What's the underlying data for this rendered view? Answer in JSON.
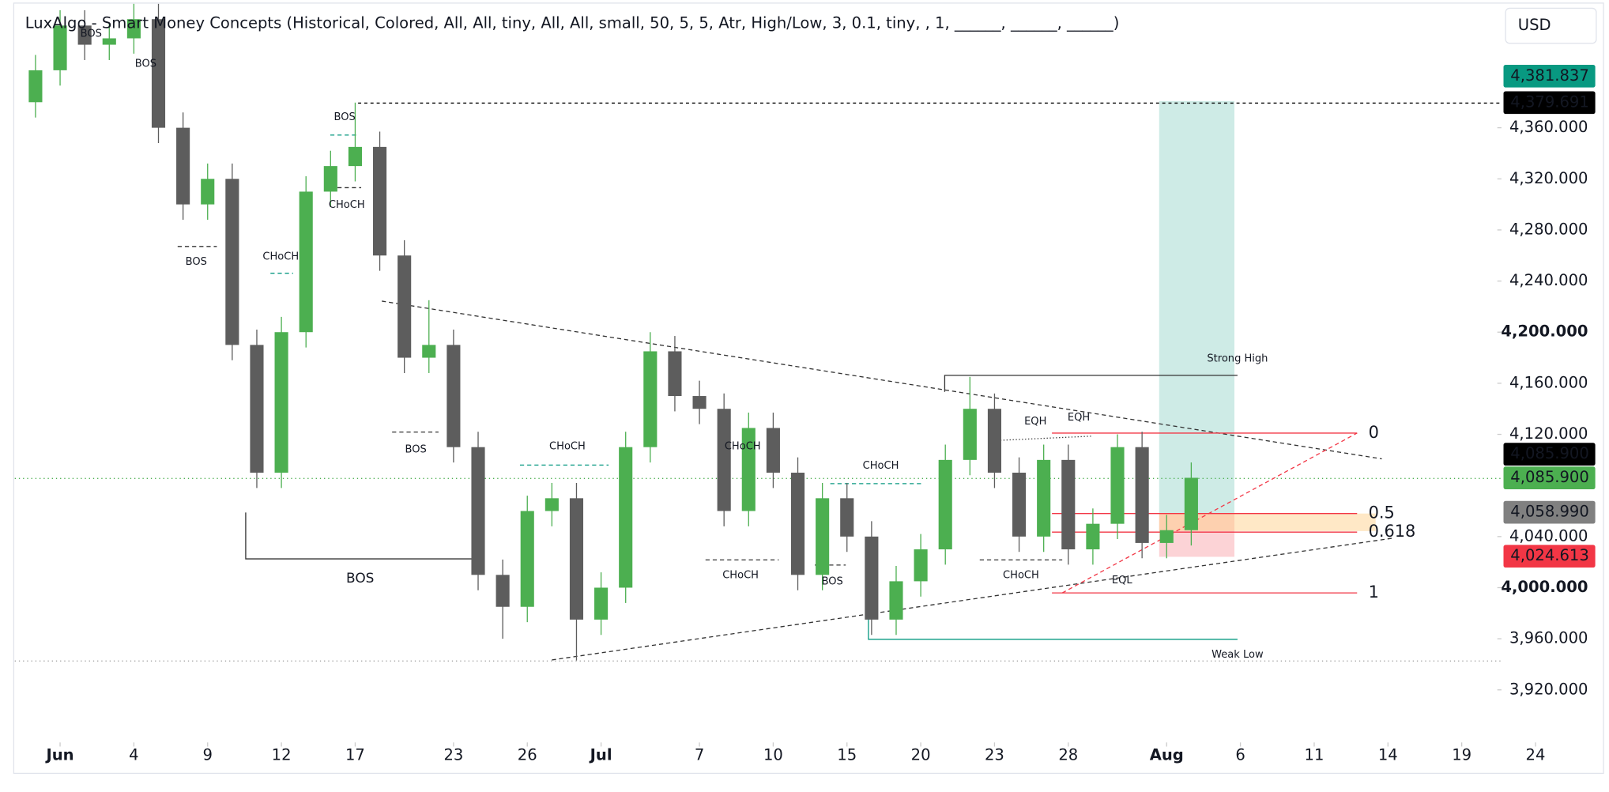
{
  "chart_data": {
    "type": "candlestick",
    "title": "LuxAlgo - Smart Money Concepts (Historical, Colored, All, All, tiny, All, All, small, 50, 5, 5, Atr, High/Low, 3, 0.1, tiny, , 1, ______, ______, ______)",
    "currency": "USD",
    "up_color": "#4caf50",
    "down_color": "#5d5d5d",
    "x": [
      -1,
      0,
      1,
      2,
      3,
      4,
      5,
      6,
      7,
      8,
      9,
      10,
      11,
      12,
      13,
      14,
      15,
      16,
      17,
      18,
      19,
      20,
      21,
      22,
      23,
      24,
      25,
      26,
      27,
      28,
      29,
      30,
      31,
      32,
      33,
      34,
      35,
      36,
      37,
      38,
      39,
      40,
      41,
      42,
      43,
      44,
      45,
      46
    ],
    "open": [
      4380,
      4405,
      4440,
      4425,
      4430,
      4445,
      4360,
      4300,
      4320,
      4190,
      4090,
      4200,
      4310,
      4330,
      4345,
      4260,
      4180,
      4190,
      4110,
      4010,
      3985,
      4060,
      4070,
      3975,
      4000,
      4110,
      4185,
      4150,
      4140,
      4060,
      4125,
      4090,
      4010,
      4070,
      4040,
      3975,
      4005,
      4030,
      4100,
      4140,
      4090,
      4040,
      4100,
      4030,
      4050,
      4110,
      4035,
      4045
    ],
    "high": [
      4417,
      4452,
      4452,
      4442,
      4457,
      4457,
      4372,
      4332,
      4332,
      4202,
      4212,
      4322,
      4342,
      4379.691,
      4357,
      4272,
      4225,
      4202,
      4122,
      4022,
      4072,
      4082,
      4082,
      4012,
      4122,
      4200,
      4197,
      4162,
      4152,
      4137,
      4137,
      4102,
      4082,
      4082,
      4052,
      4017,
      4042,
      4112,
      4165,
      4152,
      4102,
      4112,
      4112,
      4062,
      4120,
      4122,
      4057,
      4098
    ],
    "low": [
      4368,
      4393,
      4413,
      4413,
      4418,
      4348,
      4288,
      4288,
      4178,
      4078,
      4078,
      4188,
      4298,
      4318,
      4248,
      4168,
      4168,
      4098,
      3998,
      3960,
      3973,
      4048,
      3943,
      3963,
      3988,
      4098,
      4138,
      4128,
      4048,
      4048,
      4078,
      3998,
      3998,
      4028,
      3963,
      3963,
      3993,
      4018,
      4088,
      4078,
      4028,
      4028,
      4018,
      4018,
      4038,
      4023,
      4023,
      4033
    ],
    "close": [
      4405,
      4440,
      4425,
      4430,
      4445,
      4360,
      4300,
      4320,
      4190,
      4090,
      4200,
      4310,
      4330,
      4345,
      4260,
      4180,
      4190,
      4110,
      4010,
      3985,
      4060,
      4070,
      3975,
      4000,
      4110,
      4185,
      4150,
      4140,
      4060,
      4125,
      4090,
      4010,
      4070,
      4040,
      3975,
      4005,
      4030,
      4100,
      4140,
      4090,
      4040,
      4100,
      4030,
      4050,
      4110,
      4035,
      4045,
      4086
    ],
    "xlim": [
      -2.43,
      64.3
    ],
    "xticks": [
      {
        "value": 0,
        "label": "Jun"
      },
      {
        "value": 3,
        "label": "4"
      },
      {
        "value": 6,
        "label": "9"
      },
      {
        "value": 9,
        "label": "12"
      },
      {
        "value": 12,
        "label": "17"
      },
      {
        "value": 16,
        "label": "23"
      },
      {
        "value": 19,
        "label": "26"
      },
      {
        "value": 22,
        "label": "Jul"
      },
      {
        "value": 26,
        "label": "7"
      },
      {
        "value": 29,
        "label": "10"
      },
      {
        "value": 32,
        "label": "15"
      },
      {
        "value": 35,
        "label": "20"
      },
      {
        "value": 38,
        "label": "23"
      },
      {
        "value": 41,
        "label": "28"
      },
      {
        "value": 45,
        "label": "Aug"
      },
      {
        "value": 48,
        "label": "6"
      },
      {
        "value": 51,
        "label": "11"
      },
      {
        "value": 54,
        "label": "14"
      },
      {
        "value": 57,
        "label": "19"
      },
      {
        "value": 60,
        "label": "24"
      }
    ],
    "ylim": [
      3870,
      4460
    ],
    "yticks": [
      {
        "value": 3920,
        "label": "3,920.000"
      },
      {
        "value": 3960,
        "label": "3,960.000"
      },
      {
        "value": 4000,
        "label": "4,000.000"
      },
      {
        "value": 4040,
        "label": "4,040.000"
      },
      {
        "value": 4120,
        "label": "4,120.000"
      },
      {
        "value": 4160,
        "label": "4,160.000"
      },
      {
        "value": 4200,
        "label": "4,200.000"
      },
      {
        "value": 4240,
        "label": "4,240.000"
      },
      {
        "value": 4280,
        "label": "4,280.000"
      },
      {
        "value": 4320,
        "label": "4,320.000"
      },
      {
        "value": 4360,
        "label": "4,360.000"
      }
    ],
    "price_tags": [
      {
        "value": 4379.691,
        "label": "4,379.691",
        "color": "#000000"
      },
      {
        "value": 4381.837,
        "label": "4,381.837",
        "color": "#089981"
      },
      {
        "value": 4085.9,
        "label": "4,085.900",
        "color": "#4caf50"
      },
      {
        "value": 4085.9,
        "label": "4,085.900",
        "color": "#000000"
      },
      {
        "value": 4058.99,
        "label": "4,058.990",
        "color": "#808080"
      },
      {
        "value": 4024.613,
        "label": "4,024.613",
        "color": "#f23645"
      }
    ],
    "annotations": [
      "BOS",
      "BOS",
      "BOS",
      "CHoCH",
      "BOS",
      "CHoCH",
      "BOS",
      "CHoCH",
      "BOS",
      "CHoCH",
      "CHoCH",
      "BOS",
      "CHoCH",
      "CHoCH",
      "EQH",
      "EQH",
      "EQL",
      "Strong High",
      "Weak Low",
      "0",
      "0.5",
      "0.618",
      "1"
    ]
  }
}
